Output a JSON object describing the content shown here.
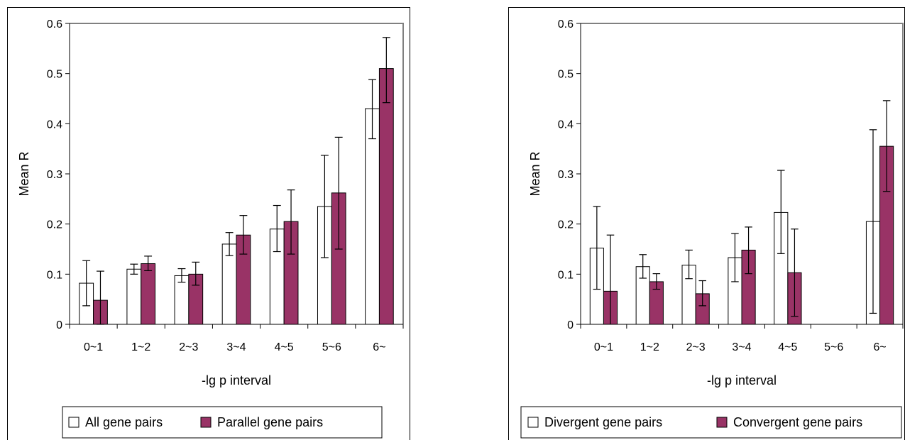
{
  "chart_data": [
    {
      "type": "bar",
      "title": "",
      "xlabel": "-lg p interval",
      "ylabel": "Mean R",
      "ylim": [
        0,
        0.6
      ],
      "yticks": [
        "0",
        "0.1",
        "0.2",
        "0.3",
        "0.4",
        "0.5",
        "0.6"
      ],
      "categories": [
        "0~1",
        "1~2",
        "2~3",
        "3~4",
        "4~5",
        "5~6",
        "6~"
      ],
      "grid": false,
      "legend_position": "bottom",
      "series": [
        {
          "name": "All gene pairs",
          "color": "#ffffff",
          "values": [
            0.082,
            0.11,
            0.097,
            0.16,
            0.19,
            0.235,
            0.43
          ],
          "err_low": [
            0.037,
            0.1,
            0.084,
            0.137,
            0.145,
            0.133,
            0.37
          ],
          "err_high": [
            0.127,
            0.12,
            0.111,
            0.183,
            0.237,
            0.337,
            0.488
          ]
        },
        {
          "name": "Parallel gene pairs",
          "color": "#993366",
          "values": [
            0.048,
            0.121,
            0.1,
            0.178,
            0.205,
            0.262,
            0.51
          ],
          "err_low": [
            0.0,
            0.107,
            0.078,
            0.14,
            0.14,
            0.15,
            0.442
          ],
          "err_high": [
            0.106,
            0.136,
            0.124,
            0.217,
            0.268,
            0.373,
            0.572
          ]
        }
      ]
    },
    {
      "type": "bar",
      "title": "",
      "xlabel": "-lg p interval",
      "ylabel": "Mean R",
      "ylim": [
        0,
        0.6
      ],
      "yticks": [
        "0",
        "0.1",
        "0.2",
        "0.3",
        "0.4",
        "0.5",
        "0.6"
      ],
      "categories": [
        "0~1",
        "1~2",
        "2~3",
        "3~4",
        "4~5",
        "5~6",
        "6~"
      ],
      "grid": false,
      "legend_position": "bottom",
      "series": [
        {
          "name": "Divergent gene pairs",
          "color": "#ffffff",
          "values": [
            0.152,
            0.115,
            0.118,
            0.133,
            0.223,
            0,
            0.205
          ],
          "err_low": [
            0.07,
            0.092,
            0.091,
            0.085,
            0.141,
            null,
            0.022
          ],
          "err_high": [
            0.235,
            0.139,
            0.148,
            0.181,
            0.307,
            null,
            0.388
          ]
        },
        {
          "name": "Convergent gene pairs",
          "color": "#993366",
          "values": [
            0.066,
            0.085,
            0.061,
            0.148,
            0.103,
            0,
            0.355
          ],
          "err_low": [
            null,
            0.07,
            0.037,
            0.101,
            0.016,
            null,
            0.265
          ],
          "err_high": [
            0.178,
            0.101,
            0.087,
            0.194,
            0.19,
            null,
            0.446
          ]
        }
      ]
    }
  ]
}
